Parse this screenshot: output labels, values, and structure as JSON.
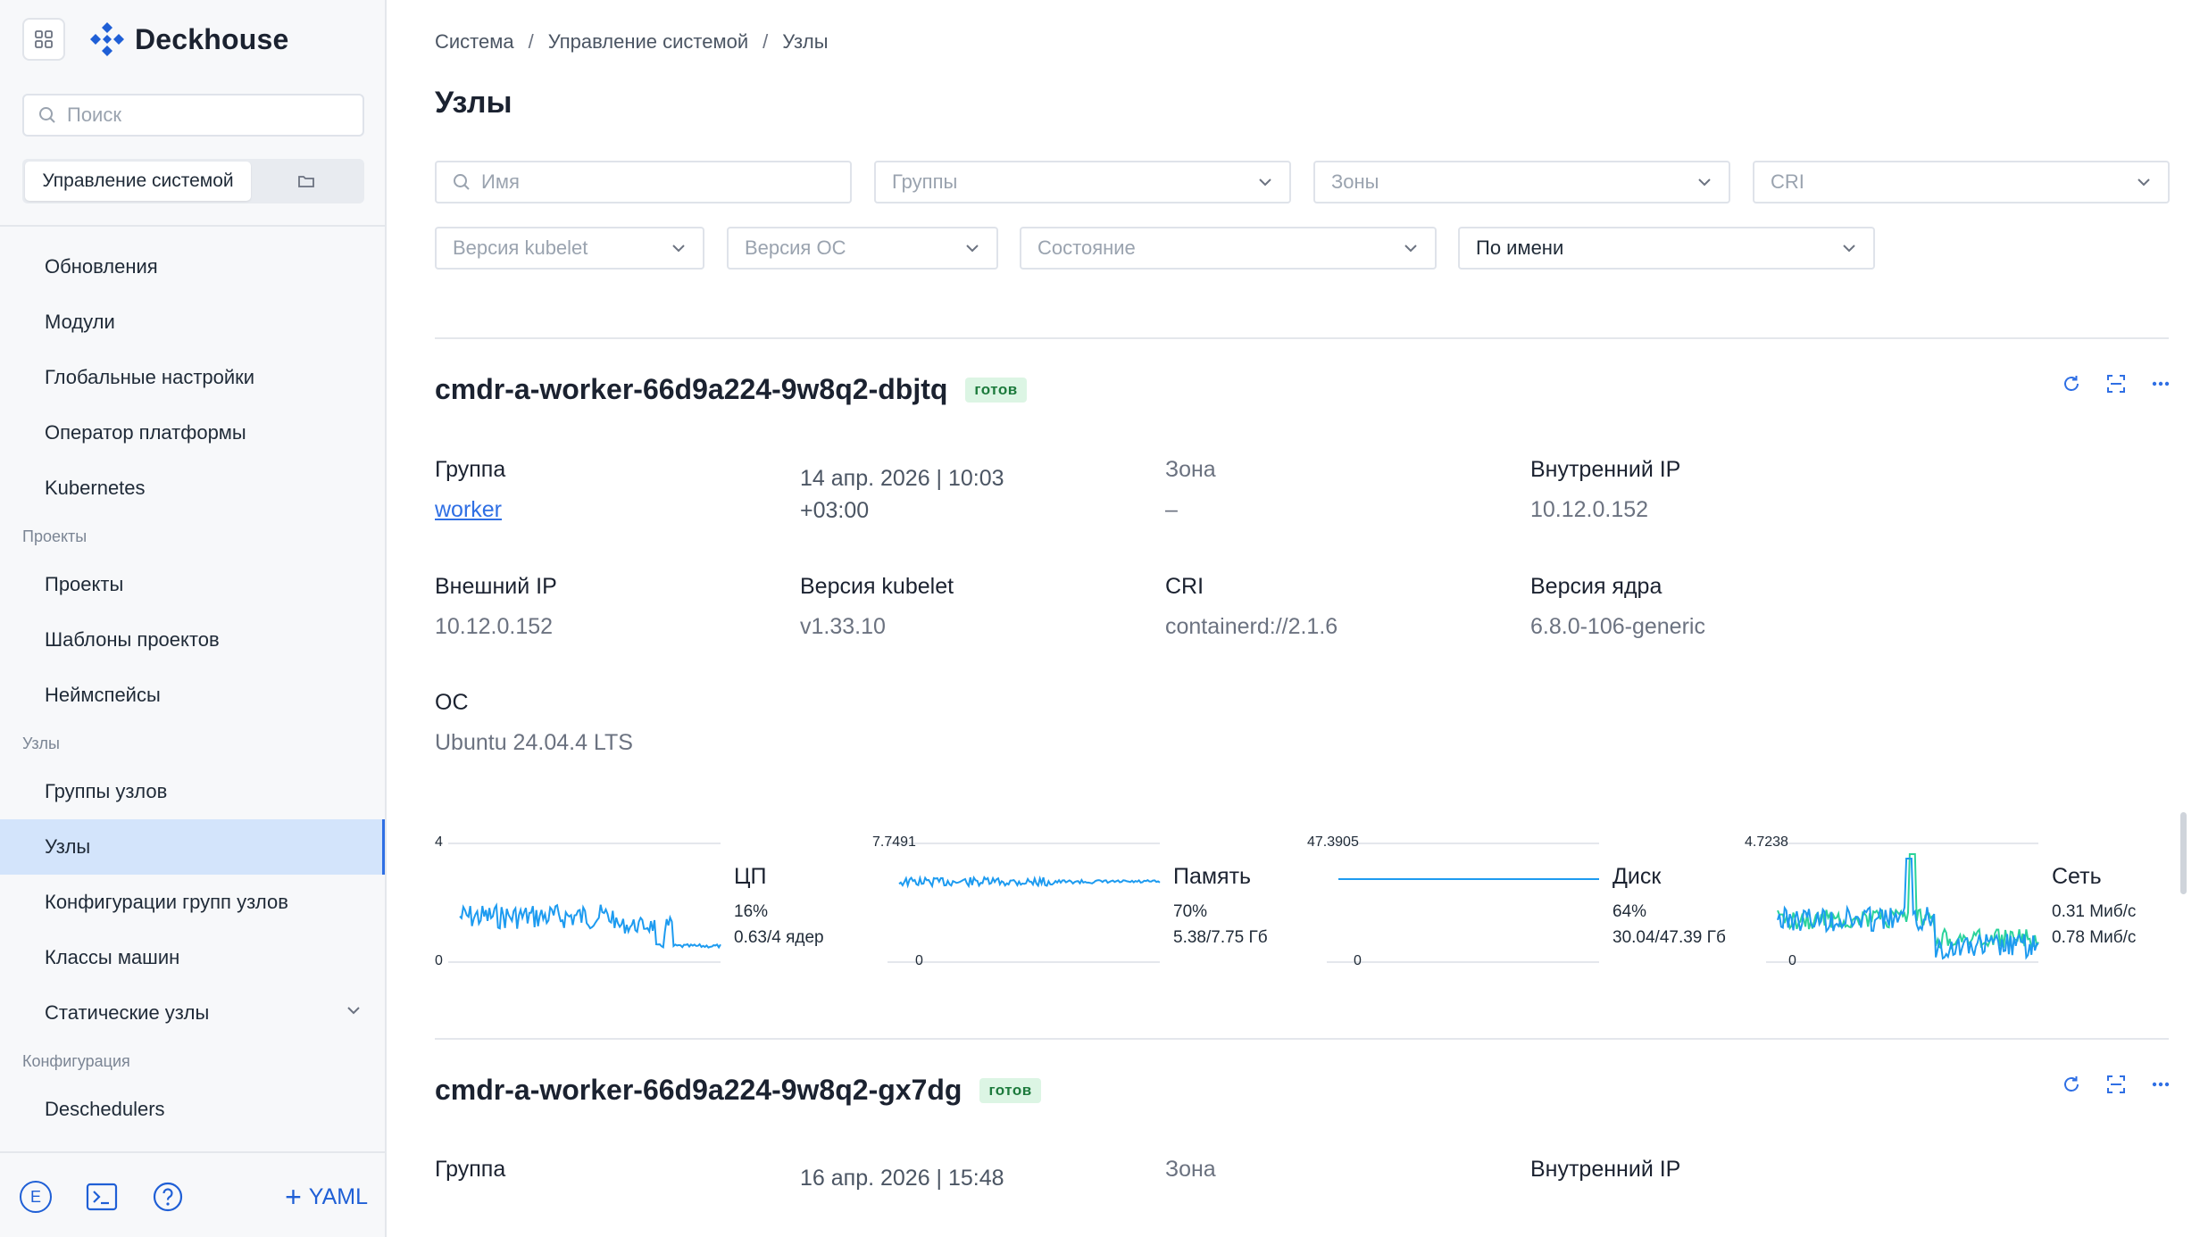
{
  "app": {
    "name": "Deckhouse"
  },
  "sidebar": {
    "search_placeholder": "Поиск",
    "segment_active": "Управление системой",
    "items": [
      {
        "type": "item",
        "label": "Обновления"
      },
      {
        "type": "item",
        "label": "Модули"
      },
      {
        "type": "item",
        "label": "Глобальные настройки"
      },
      {
        "type": "item",
        "label": "Оператор платформы"
      },
      {
        "type": "item",
        "label": "Kubernetes"
      },
      {
        "type": "section",
        "label": "Проекты"
      },
      {
        "type": "item",
        "label": "Проекты"
      },
      {
        "type": "item",
        "label": "Шаблоны проектов"
      },
      {
        "type": "item",
        "label": "Неймспейсы"
      },
      {
        "type": "section",
        "label": "Узлы"
      },
      {
        "type": "item",
        "label": "Группы узлов"
      },
      {
        "type": "item",
        "label": "Узлы",
        "active": true
      },
      {
        "type": "item",
        "label": "Конфигурации групп узлов"
      },
      {
        "type": "item",
        "label": "Классы машин"
      },
      {
        "type": "item",
        "label": "Статические узлы",
        "expandable": true
      },
      {
        "type": "section",
        "label": "Конфигурация"
      },
      {
        "type": "item",
        "label": "Deschedulers"
      }
    ],
    "bottom": {
      "avatar_letter": "E",
      "yaml_label": "YAML"
    }
  },
  "breadcrumb": [
    "Система",
    "Управление системой",
    "Узлы"
  ],
  "page_title": "Узлы",
  "filters": {
    "name_placeholder": "Имя",
    "groups": "Группы",
    "zones": "Зоны",
    "cri": "CRI",
    "kubelet": "Версия kubelet",
    "os": "Версия ОС",
    "state": "Состояние",
    "sort": "По имени"
  },
  "nodes": [
    {
      "name": "cmdr-a-worker-66d9a224-9w8q2-dbjtq",
      "status": "готов",
      "group_label": "Группа",
      "group_value": "worker",
      "created": "14 апр. 2026 | 10:03",
      "created_tz": "+03:00",
      "zone_label": "Зона",
      "zone_value": "–",
      "internal_ip_label": "Внутренний IP",
      "internal_ip": "10.12.0.152",
      "external_ip_label": "Внешний IP",
      "external_ip": "10.12.0.152",
      "kubelet_label": "Версия kubelet",
      "kubelet": "v1.33.10",
      "cri_label": "CRI",
      "cri": "containerd://2.1.6",
      "kernel_label": "Версия ядра",
      "kernel": "6.8.0-106-generic",
      "os_label": "ОС",
      "os": "Ubuntu 24.04.4 LTS",
      "metrics": {
        "cpu": {
          "title": "ЦП",
          "percent": "16%",
          "detail": "0.63/4 ядер",
          "max": "4",
          "min": "0"
        },
        "memory": {
          "title": "Память",
          "percent": "70%",
          "detail": "5.38/7.75 Гб",
          "max": "7.7491",
          "min": "0"
        },
        "disk": {
          "title": "Диск",
          "percent": "64%",
          "detail": "30.04/47.39 Гб",
          "max": "47.3905",
          "min": "0"
        },
        "network": {
          "title": "Сеть",
          "rx": "0.31 Миб/с",
          "tx": "0.78 Миб/с",
          "max": "4.7238",
          "min": "0"
        }
      }
    },
    {
      "name": "cmdr-a-worker-66d9a224-9w8q2-gx7dg",
      "status": "готов",
      "group_label": "Группа",
      "created": "16 апр. 2026 | 15:48",
      "zone_label": "Зона",
      "internal_ip_label": "Внутренний IP"
    }
  ],
  "colors": {
    "accent": "#2f6fe4",
    "chart_blue": "#1d9bf0",
    "chart_green": "#2bd39b",
    "badge_bg": "#dcf5e4"
  }
}
